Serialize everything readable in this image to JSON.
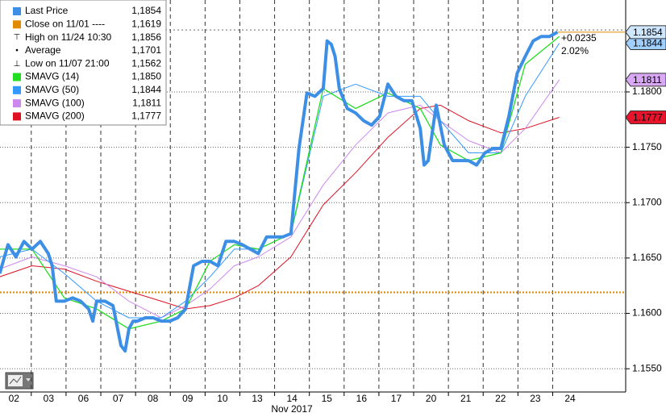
{
  "chart_data": {
    "type": "line",
    "x_axis_label": "Nov 2017",
    "xlim": [
      0.1,
      18.1
    ],
    "ylim": [
      1.1529,
      1.1883
    ],
    "xticks": [
      {
        "value": 0,
        "label": "02"
      },
      {
        "value": 1,
        "label": "03"
      },
      {
        "value": 2,
        "label": "06"
      },
      {
        "value": 3,
        "label": "07"
      },
      {
        "value": 4,
        "label": "08"
      },
      {
        "value": 5,
        "label": "09"
      },
      {
        "value": 6,
        "label": "10"
      },
      {
        "value": 7,
        "label": "13"
      },
      {
        "value": 8,
        "label": "14"
      },
      {
        "value": 9,
        "label": "15"
      },
      {
        "value": 10,
        "label": "16"
      },
      {
        "value": 11,
        "label": "17"
      },
      {
        "value": 12,
        "label": "20"
      },
      {
        "value": 13,
        "label": "21"
      },
      {
        "value": 14,
        "label": "22"
      },
      {
        "value": 15,
        "label": "23"
      },
      {
        "value": 16,
        "label": "24"
      }
    ],
    "yticks": [
      {
        "value": 1.155,
        "label": "1.1550"
      },
      {
        "value": 1.16,
        "label": "1.1600"
      },
      {
        "value": 1.165,
        "label": "1.1650"
      },
      {
        "value": 1.17,
        "label": "1.1700"
      },
      {
        "value": 1.175,
        "label": "1.1750"
      },
      {
        "value": 1.18,
        "label": "1.1800"
      }
    ],
    "grid": true,
    "series": [
      {
        "name": "Last Price",
        "color": "#3d8fe6",
        "width": 4,
        "legend_value": "1,1854",
        "axis_label": "1.1854",
        "x": [
          0.09,
          0.33,
          0.56,
          0.79,
          1.02,
          1.26,
          1.49,
          1.6,
          1.72,
          1.95,
          2.19,
          2.42,
          2.65,
          2.77,
          2.88,
          3.12,
          3.35,
          3.58,
          3.7,
          3.81,
          3.93,
          4.05,
          4.28,
          4.51,
          4.74,
          4.98,
          5.21,
          5.44,
          5.67,
          5.91,
          6.14,
          6.37,
          6.6,
          6.84,
          7.07,
          7.3,
          7.53,
          7.77,
          8.0,
          8.23,
          8.47,
          8.7,
          8.93,
          9.16,
          9.4,
          9.51,
          9.63,
          9.74,
          9.86,
          10.09,
          10.33,
          10.56,
          10.79,
          11.02,
          11.26,
          11.49,
          11.72,
          11.95,
          12.19,
          12.3,
          12.42,
          12.65,
          12.88,
          13.12,
          13.35,
          13.58,
          13.81,
          14.05,
          14.28,
          14.51,
          14.74,
          14.98,
          15.21,
          15.44,
          15.67,
          15.91,
          16.14
        ],
        "values": [
          1.1636,
          1.1662,
          1.1651,
          1.1665,
          1.1658,
          1.1665,
          1.1654,
          1.1643,
          1.1611,
          1.1611,
          1.1614,
          1.1611,
          1.1604,
          1.1593,
          1.1611,
          1.1611,
          1.1607,
          1.1571,
          1.1566,
          1.1586,
          1.1593,
          1.1593,
          1.1596,
          1.1596,
          1.1593,
          1.1593,
          1.1596,
          1.1604,
          1.1643,
          1.1647,
          1.1647,
          1.1643,
          1.1665,
          1.1665,
          1.1662,
          1.1658,
          1.1654,
          1.1669,
          1.1669,
          1.1669,
          1.1672,
          1.1749,
          1.1799,
          1.1796,
          1.1803,
          1.1846,
          1.1843,
          1.1832,
          1.1803,
          1.1785,
          1.1781,
          1.1774,
          1.177,
          1.1778,
          1.1807,
          1.1796,
          1.1792,
          1.1792,
          1.1767,
          1.1734,
          1.1738,
          1.1788,
          1.1752,
          1.1738,
          1.1738,
          1.1738,
          1.1734,
          1.1745,
          1.1749,
          1.1749,
          1.1778,
          1.1817,
          1.1832,
          1.1846,
          1.185,
          1.185,
          1.1854
        ]
      },
      {
        "name": "SMAVG (14)",
        "color": "#22dd22",
        "width": 1.3,
        "legend_value": "1,1850",
        "x": [
          0.09,
          1.02,
          1.95,
          2.88,
          3.81,
          4.74,
          5.44,
          6.14,
          6.84,
          7.53,
          8.47,
          9.4,
          10.33,
          11.26,
          12.19,
          12.77,
          13.58,
          14.51,
          15.21,
          16.19
        ],
        "values": [
          1.1658,
          1.1658,
          1.1614,
          1.1604,
          1.1586,
          1.1593,
          1.1604,
          1.1647,
          1.1662,
          1.1658,
          1.1672,
          1.1803,
          1.1785,
          1.1799,
          1.1785,
          1.1752,
          1.1738,
          1.1745,
          1.1825,
          1.185
        ]
      },
      {
        "name": "SMAVG (50)",
        "color": "#3399ff",
        "width": 1,
        "legend_value": "1,1844",
        "axis_label": "1.1844",
        "x": [
          0.09,
          1.02,
          1.95,
          2.88,
          3.81,
          4.74,
          5.44,
          6.14,
          6.84,
          7.53,
          8.47,
          9.4,
          10.33,
          11.26,
          12.19,
          12.77,
          13.58,
          14.51,
          15.21,
          16.19
        ],
        "values": [
          1.1651,
          1.1658,
          1.1636,
          1.1611,
          1.1596,
          1.1596,
          1.1611,
          1.1633,
          1.1658,
          1.1658,
          1.1672,
          1.1796,
          1.1807,
          1.1796,
          1.1796,
          1.1774,
          1.1745,
          1.1745,
          1.1796,
          1.1844
        ]
      },
      {
        "name": "SMAVG (100)",
        "color": "#cc88ee",
        "width": 1,
        "legend_value": "1,1811",
        "axis_label": "1.1811",
        "x": [
          0.09,
          1.02,
          1.95,
          2.88,
          3.81,
          4.74,
          5.44,
          6.14,
          6.84,
          7.53,
          8.47,
          9.4,
          10.33,
          11.26,
          12.19,
          12.77,
          13.58,
          14.51,
          15.21,
          16.19
        ],
        "values": [
          1.164,
          1.1651,
          1.1643,
          1.1633,
          1.1611,
          1.1596,
          1.1607,
          1.1622,
          1.1643,
          1.1651,
          1.1669,
          1.1716,
          1.1752,
          1.1781,
          1.1788,
          1.1774,
          1.1756,
          1.1745,
          1.1767,
          1.1811
        ]
      },
      {
        "name": "SMAVG (200)",
        "color": "#dd1122",
        "width": 1,
        "legend_value": "1,1777",
        "axis_label": "1.1777",
        "x": [
          0.09,
          1.02,
          1.95,
          2.88,
          3.81,
          4.74,
          5.44,
          6.14,
          6.84,
          7.53,
          8.47,
          9.4,
          10.33,
          11.26,
          12.19,
          12.77,
          13.58,
          14.51,
          15.21,
          16.19
        ],
        "values": [
          1.1633,
          1.1643,
          1.164,
          1.1629,
          1.162,
          1.1611,
          1.1604,
          1.1607,
          1.1614,
          1.1625,
          1.1651,
          1.1698,
          1.1727,
          1.1759,
          1.1785,
          1.1788,
          1.1774,
          1.1763,
          1.1767,
          1.1777
        ]
      }
    ],
    "stats": [
      {
        "name": "Close on 11/01 ----",
        "value": 1.1619,
        "legend_value": "1,1619",
        "color": "#e08a00"
      },
      {
        "name": "High on 11/24 10:30",
        "value": 1.1856,
        "legend_value": "1,1856",
        "color": "#666666"
      },
      {
        "name": "Average",
        "legend_value": "1,1701"
      },
      {
        "name": "Low on 11/07 21:00",
        "legend_value": "1,1562"
      }
    ],
    "change_annotation": {
      "text": "+0.0235",
      "percent": "2.02%",
      "color": "#e08a00"
    }
  }
}
